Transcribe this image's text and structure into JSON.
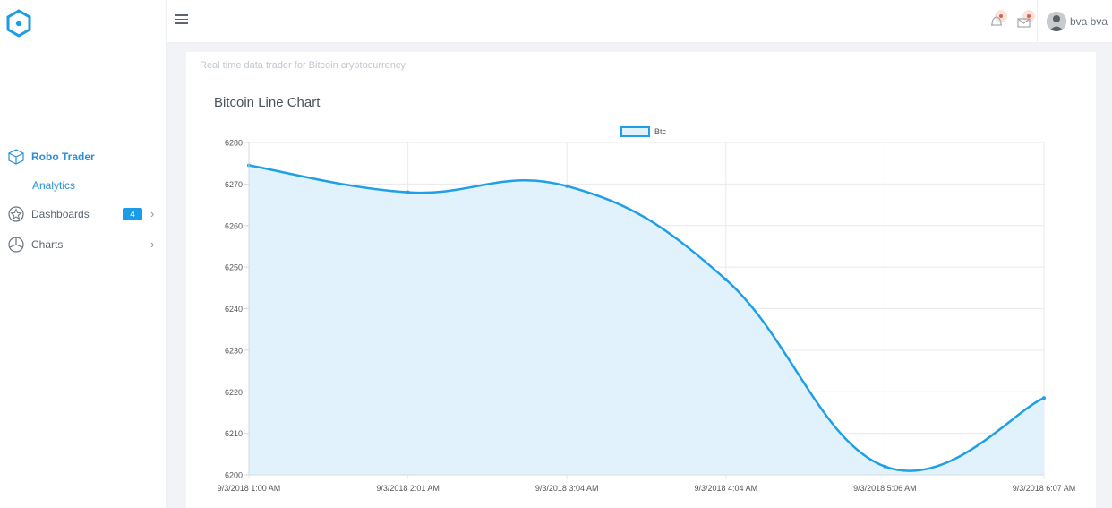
{
  "sidebar": {
    "items": [
      {
        "label": "Robo Trader",
        "icon": "cube-icon",
        "active": true
      },
      {
        "label": "Analytics",
        "sub": true
      },
      {
        "label": "Dashboards",
        "icon": "speedometer-icon",
        "badge": "4"
      },
      {
        "label": "Charts",
        "icon": "pie-chart-icon"
      }
    ]
  },
  "header": {
    "user_name": "bva bva"
  },
  "main": {
    "subtitle": "Real time data trader for Bitcoin cryptocurrency",
    "chart_title": "Bitcoin Line Chart"
  },
  "colors": {
    "accent": "#1e9be6",
    "line": "#1e9fe8",
    "fill": "#e1f2fc"
  },
  "chart_data": {
    "type": "area",
    "title": "Bitcoin Line Chart",
    "categories": [
      "9/3/2018 1:00 AM",
      "9/3/2018 2:01 AM",
      "9/3/2018 3:04 AM",
      "9/3/2018 4:04 AM",
      "9/3/2018 5:06 AM",
      "9/3/2018 6:07 AM"
    ],
    "series": [
      {
        "name": "Btc",
        "values": [
          6274.5,
          6268,
          6269.5,
          6247,
          6202,
          6218.5
        ]
      }
    ],
    "yticks": [
      6280,
      6270,
      6260,
      6250,
      6240,
      6230,
      6220,
      6210,
      6200
    ],
    "ylim": [
      6200,
      6280
    ],
    "grid": true,
    "legend": "top-center"
  }
}
